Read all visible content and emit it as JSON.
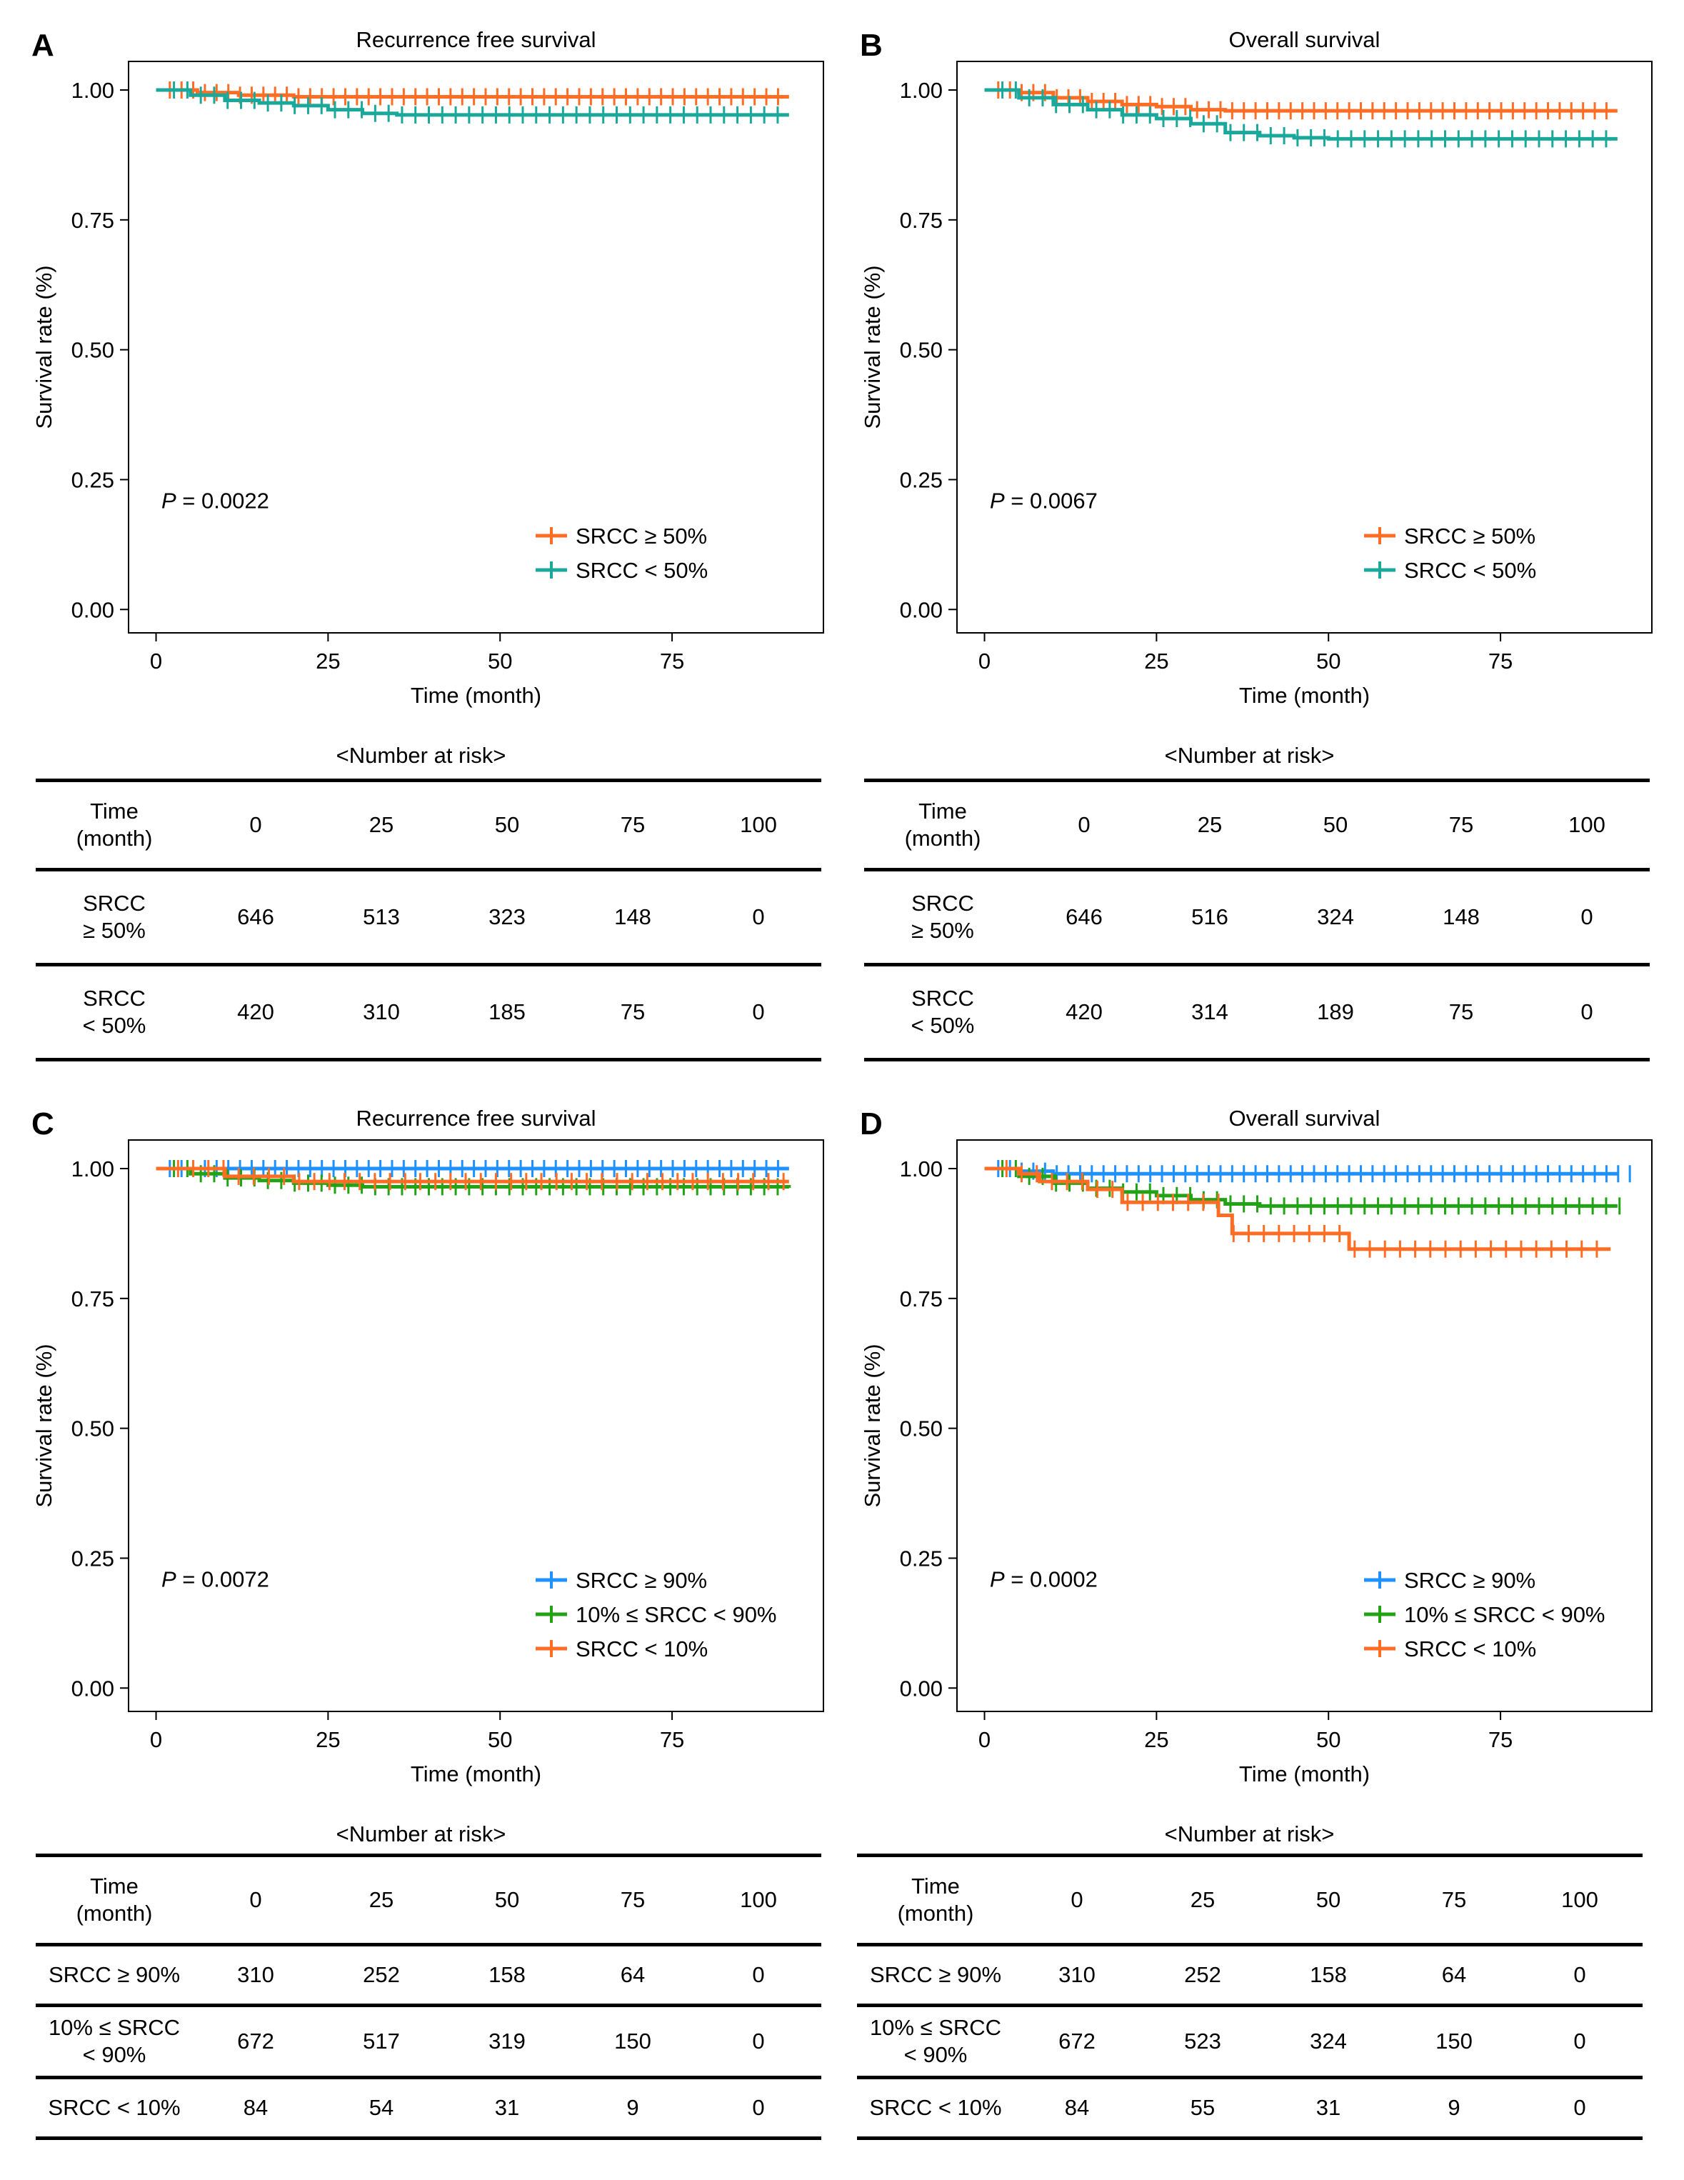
{
  "colors": {
    "orange": "#ff6d24",
    "teal": "#1aa89b",
    "blue": "#1e90ff",
    "green": "#22a316"
  },
  "risk_title": "<Number at risk>",
  "chart_data": [
    {
      "panel_letter": "A",
      "type": "line",
      "title": "Recurrence free survival",
      "xlabel": "Time (month)",
      "ylabel": "Survival rate (%)",
      "xticks": [
        0,
        25,
        50,
        75
      ],
      "yticks": [
        "0.00",
        "0.25",
        "0.50",
        "0.75",
        "1.00"
      ],
      "xlim": [
        -4,
        97
      ],
      "ylim": [
        -0.045,
        1.055
      ],
      "pvalue": "P = 0.0022",
      "legend_position": "bottom-right",
      "series": [
        {
          "name": "SRCC ≥ 50%",
          "color": "#ff6d24",
          "x": [
            0,
            6,
            12,
            20,
            92
          ],
          "y": [
            1.0,
            0.995,
            0.99,
            0.987,
            0.987
          ],
          "censor_end": 92
        },
        {
          "name": "SRCC < 50%",
          "color": "#1aa89b",
          "x": [
            0,
            5,
            10,
            15,
            20,
            25,
            30,
            35,
            40,
            92
          ],
          "y": [
            1.0,
            0.99,
            0.98,
            0.975,
            0.97,
            0.962,
            0.955,
            0.952,
            0.952,
            0.952
          ],
          "censor_end": 92
        }
      ],
      "table": {
        "header": [
          "Time\n(month)",
          "0",
          "25",
          "50",
          "75",
          "100"
        ],
        "rows": [
          [
            "SRCC\n≥ 50%",
            "646",
            "513",
            "323",
            "148",
            "0"
          ],
          [
            "SRCC\n< 50%",
            "420",
            "310",
            "185",
            "75",
            "0"
          ]
        ]
      }
    },
    {
      "panel_letter": "B",
      "type": "line",
      "title": "Overall survival",
      "xlabel": "Time (month)",
      "ylabel": "Survival rate (%)",
      "xticks": [
        0,
        25,
        50,
        75
      ],
      "yticks": [
        "0.00",
        "0.25",
        "0.50",
        "0.75",
        "1.00"
      ],
      "xlim": [
        -4,
        97
      ],
      "ylim": [
        -0.045,
        1.055
      ],
      "pvalue": "P = 0.0067",
      "legend_position": "bottom-right",
      "series": [
        {
          "name": "SRCC ≥ 50%",
          "color": "#ff6d24",
          "x": [
            0,
            5,
            10,
            15,
            20,
            25,
            30,
            35,
            92
          ],
          "y": [
            1.0,
            0.995,
            0.985,
            0.978,
            0.972,
            0.968,
            0.962,
            0.96,
            0.96
          ],
          "censor_end": 92
        },
        {
          "name": "SRCC < 50%",
          "color": "#1aa89b",
          "x": [
            0,
            5,
            10,
            15,
            20,
            25,
            30,
            35,
            40,
            45,
            50,
            92
          ],
          "y": [
            1.0,
            0.985,
            0.972,
            0.962,
            0.952,
            0.945,
            0.935,
            0.918,
            0.912,
            0.908,
            0.906,
            0.906
          ],
          "censor_end": 92
        }
      ],
      "table": {
        "header": [
          "Time\n(month)",
          "0",
          "25",
          "50",
          "75",
          "100"
        ],
        "rows": [
          [
            "SRCC\n≥ 50%",
            "646",
            "516",
            "324",
            "148",
            "0"
          ],
          [
            "SRCC\n< 50%",
            "420",
            "314",
            "189",
            "75",
            "0"
          ]
        ]
      }
    },
    {
      "panel_letter": "C",
      "type": "line",
      "title": "Recurrence free survival",
      "xlabel": "Time (month)",
      "ylabel": "Survival rate (%)",
      "xticks": [
        0,
        25,
        50,
        75
      ],
      "yticks": [
        "0.00",
        "0.25",
        "0.50",
        "0.75",
        "1.00"
      ],
      "xlim": [
        -4,
        97
      ],
      "ylim": [
        -0.045,
        1.055
      ],
      "pvalue": "P = 0.0072",
      "legend_position": "bottom-right",
      "series": [
        {
          "name": "SRCC ≥ 90%",
          "color": "#1e90ff",
          "x": [
            0,
            92
          ],
          "y": [
            1.0,
            1.0
          ],
          "censor_end": 92
        },
        {
          "name": "10% ≤ SRCC < 90%",
          "color": "#22a316",
          "x": [
            0,
            5,
            10,
            15,
            20,
            25,
            30,
            92
          ],
          "y": [
            1.0,
            0.99,
            0.982,
            0.977,
            0.972,
            0.968,
            0.965,
            0.963
          ],
          "censor_end": 92
        },
        {
          "name": "SRCC < 10%",
          "color": "#ff6d24",
          "x": [
            0,
            10,
            20,
            92
          ],
          "y": [
            1.0,
            0.985,
            0.975,
            0.975
          ],
          "censor_end": 92
        }
      ],
      "table": {
        "header": [
          "Time\n(month)",
          "0",
          "25",
          "50",
          "75",
          "100"
        ],
        "rows": [
          [
            "SRCC ≥ 90%",
            "310",
            "252",
            "158",
            "64",
            "0"
          ],
          [
            "10% ≤ SRCC\n< 90%",
            "672",
            "517",
            "319",
            "150",
            "0"
          ],
          [
            "SRCC < 10%",
            "84",
            "54",
            "31",
            "9",
            "0"
          ]
        ]
      }
    },
    {
      "panel_letter": "D",
      "type": "line",
      "title": "Overall survival",
      "xlabel": "Time (month)",
      "ylabel": "Survival rate (%)",
      "xticks": [
        0,
        25,
        50,
        75
      ],
      "yticks": [
        "0.00",
        "0.25",
        "0.50",
        "0.75",
        "1.00"
      ],
      "xlim": [
        -4,
        97
      ],
      "ylim": [
        -0.045,
        1.055
      ],
      "pvalue": "P = 0.0002",
      "legend_position": "bottom-right",
      "series": [
        {
          "name": "SRCC ≥ 90%",
          "color": "#1e90ff",
          "x": [
            0,
            5,
            10,
            92
          ],
          "y": [
            1.0,
            0.995,
            0.99,
            0.99
          ],
          "censor_end": 94
        },
        {
          "name": "10% ≤ SRCC < 90%",
          "color": "#22a316",
          "x": [
            0,
            5,
            10,
            15,
            20,
            25,
            30,
            35,
            40,
            92
          ],
          "y": [
            1.0,
            0.985,
            0.972,
            0.962,
            0.955,
            0.948,
            0.94,
            0.932,
            0.928,
            0.928
          ],
          "censor_end": 94
        },
        {
          "name": "SRCC < 10%",
          "color": "#ff6d24",
          "x": [
            0,
            5,
            8,
            15,
            20,
            34,
            36,
            53,
            91
          ],
          "y": [
            1.0,
            0.99,
            0.975,
            0.96,
            0.935,
            0.91,
            0.875,
            0.845,
            0.845
          ],
          "censor_end": 91
        }
      ],
      "table": {
        "header": [
          "Time\n(month)",
          "0",
          "25",
          "50",
          "75",
          "100"
        ],
        "rows": [
          [
            "SRCC ≥ 90%",
            "310",
            "252",
            "158",
            "64",
            "0"
          ],
          [
            "10% ≤ SRCC\n< 90%",
            "672",
            "523",
            "324",
            "150",
            "0"
          ],
          [
            "SRCC < 10%",
            "84",
            "55",
            "31",
            "9",
            "0"
          ]
        ]
      }
    }
  ]
}
